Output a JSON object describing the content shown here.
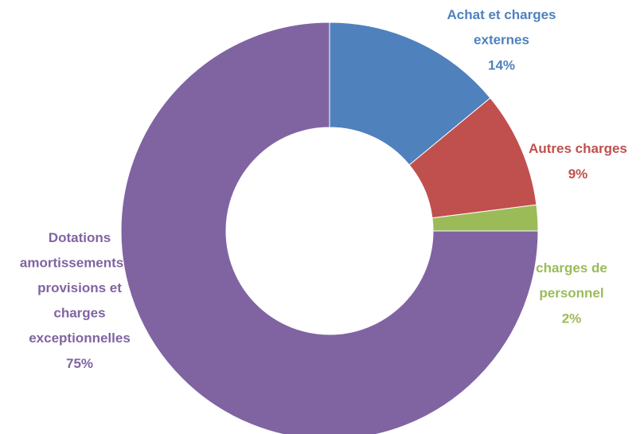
{
  "chart_data": {
    "type": "donut",
    "categories": [
      "Achat et charges externes",
      "Autres charges",
      "charges de personnel",
      "Dotations amortissements et provisions et charges exceptionnelles"
    ],
    "values": [
      14,
      9,
      2,
      75
    ],
    "value_labels": [
      "14%",
      "9%",
      "2%",
      "75%"
    ],
    "colors": [
      "#4f81bd",
      "#c0504d",
      "#9bbb59",
      "#8064a2"
    ]
  }
}
